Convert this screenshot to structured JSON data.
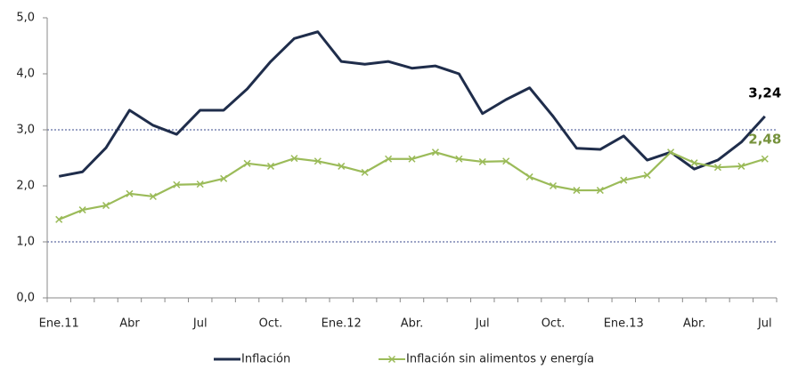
{
  "chart_data": {
    "type": "line",
    "categories": [
      "Ene.11",
      null,
      null,
      "Abr",
      null,
      null,
      "Jul",
      null,
      null,
      "Oct.",
      null,
      null,
      "Ene.12",
      null,
      null,
      "Abr.",
      null,
      null,
      "Jul",
      null,
      null,
      "Oct.",
      null,
      null,
      "Ene.13",
      null,
      null,
      "Abr.",
      null,
      null,
      "Jul"
    ],
    "series": [
      {
        "name": "Inflación",
        "color": "#1f2d4b",
        "marker": "none",
        "values": [
          2.17,
          2.25,
          2.68,
          3.35,
          3.08,
          2.92,
          3.35,
          3.35,
          3.73,
          4.22,
          4.63,
          4.75,
          4.22,
          4.17,
          4.22,
          4.1,
          4.14,
          4.0,
          3.29,
          3.54,
          3.75,
          3.24,
          2.67,
          2.65,
          2.89,
          2.46,
          2.6,
          2.3,
          2.46,
          2.78,
          3.24
        ],
        "value_labels": [
          null,
          null,
          null,
          null,
          null,
          null,
          null,
          null,
          null,
          null,
          null,
          null,
          null,
          null,
          null,
          null,
          null,
          null,
          null,
          null,
          null,
          null,
          null,
          null,
          null,
          null,
          null,
          null,
          null,
          null,
          "3,24"
        ],
        "label_color": "#000000"
      },
      {
        "name": "Inflación sin alimentos y energía",
        "color": "#9bbb59",
        "marker": "x",
        "values": [
          1.4,
          1.57,
          1.65,
          1.86,
          1.81,
          2.02,
          2.03,
          2.13,
          2.4,
          2.35,
          2.49,
          2.44,
          2.35,
          2.24,
          2.48,
          2.48,
          2.6,
          2.48,
          2.43,
          2.44,
          2.16,
          2.0,
          1.92,
          1.92,
          2.1,
          2.19,
          2.6,
          2.41,
          2.33,
          2.35,
          2.48
        ],
        "value_labels": [
          null,
          null,
          null,
          null,
          null,
          null,
          null,
          null,
          null,
          null,
          null,
          null,
          null,
          null,
          null,
          null,
          null,
          null,
          null,
          null,
          null,
          null,
          null,
          null,
          null,
          null,
          null,
          null,
          null,
          null,
          "2,48"
        ],
        "label_color": "#76923c"
      }
    ],
    "ylim": [
      0,
      5
    ],
    "yticks": [
      {
        "value": 0,
        "label": "0,0"
      },
      {
        "value": 1,
        "label": "1,0"
      },
      {
        "value": 2,
        "label": "2,0"
      },
      {
        "value": 3,
        "label": "3,0"
      },
      {
        "value": 4,
        "label": "4,0"
      },
      {
        "value": 5,
        "label": "5,0"
      }
    ],
    "reference_lines": [
      1,
      3
    ],
    "legend": "bottom"
  }
}
